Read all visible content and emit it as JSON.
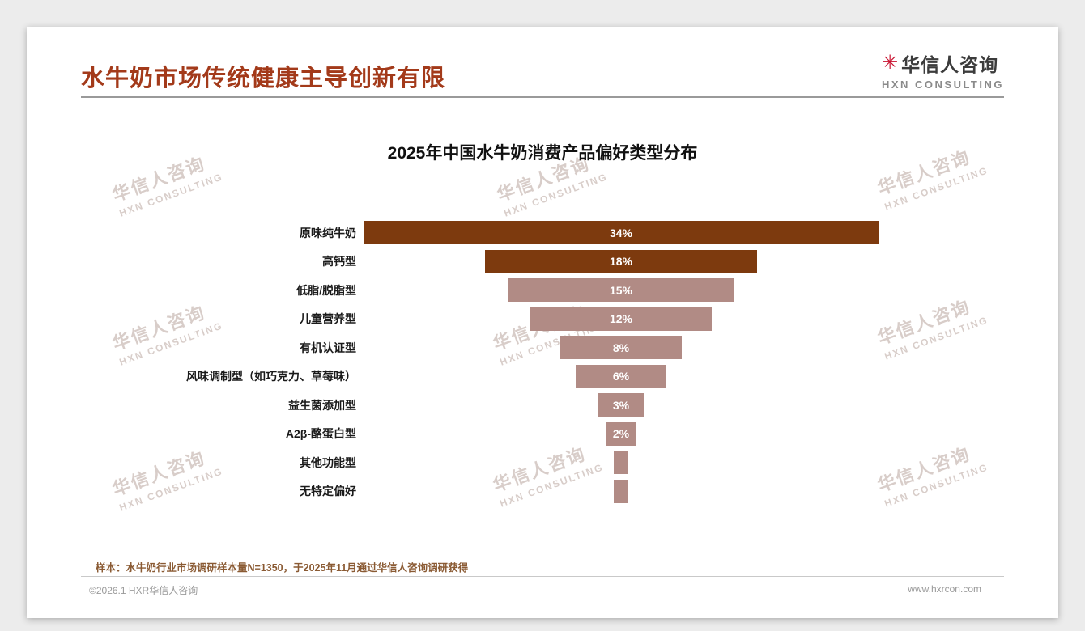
{
  "page": {
    "title": "水牛奶市场传统健康主导创新有限",
    "note": "样本：水牛奶行业市场调研样本量N=1350，于2025年11月通过华信人咨询调研获得",
    "footer_left": "©2026.1 HXR华信人咨询",
    "footer_right": "www.hxrcon.com"
  },
  "logo": {
    "icon": "asterisk-icon",
    "icon_glyph": "✳",
    "icon_color": "#C8102E",
    "name": "华信人咨询",
    "subtitle": "HXN CONSULTING"
  },
  "watermark": {
    "line1": "华信人咨询",
    "line2": "HXN CONSULTING"
  },
  "chart_data": {
    "type": "bar",
    "orientation": "horizontal",
    "layout": "centered-funnel",
    "title": "2025年中国水牛奶消费产品偏好类型分布",
    "categories": [
      "原味纯牛奶",
      "高钙型",
      "低脂/脱脂型",
      "儿童营养型",
      "有机认证型",
      "风味调制型（如巧克力、草莓味）",
      "益生菌添加型",
      "A2β-酪蛋白型",
      "其他功能型",
      "无特定偏好"
    ],
    "values": [
      34,
      18,
      15,
      12,
      8,
      6,
      3,
      2,
      1,
      1
    ],
    "value_labels": [
      "34%",
      "18%",
      "15%",
      "12%",
      "8%",
      "6%",
      "3%",
      "2%",
      "",
      ""
    ],
    "bar_colors": [
      "#7D3A0E",
      "#7D3A0E",
      "#B18B85",
      "#B18B85",
      "#B18B85",
      "#B18B85",
      "#B18B85",
      "#B18B85",
      "#B18B85",
      "#B18B85"
    ],
    "xlim": [
      0,
      34
    ],
    "grid": false,
    "legend": false
  }
}
